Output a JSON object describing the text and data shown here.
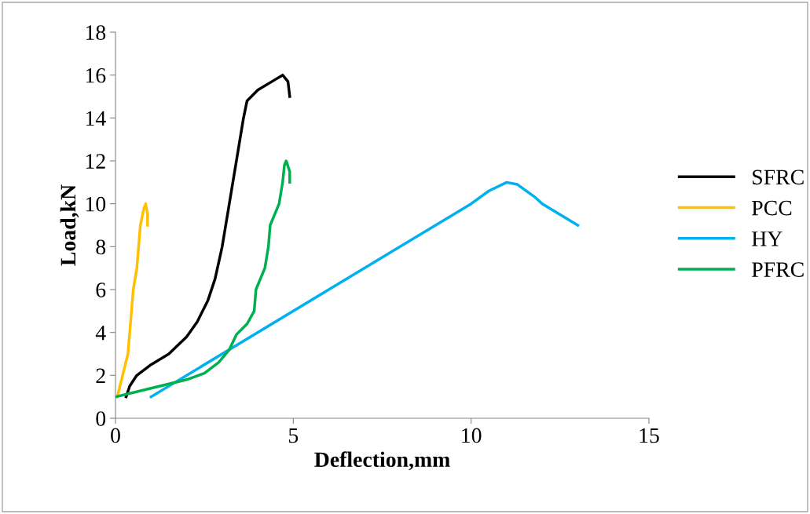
{
  "chart_data": {
    "type": "line",
    "xlabel": "Deflection,mm",
    "ylabel": "Load,kN",
    "xlim": [
      0,
      15
    ],
    "xticks": [
      0,
      5,
      10,
      15
    ],
    "ylim": [
      0,
      18
    ],
    "yticks": [
      0,
      2,
      4,
      6,
      8,
      10,
      12,
      14,
      16,
      18
    ],
    "grid": false,
    "legend": "right",
    "marker": "none",
    "line_style": "solid",
    "series": [
      {
        "name": "SFRC",
        "color": "#000000",
        "x": [
          0.3,
          0.4,
          0.6,
          1,
          1.5,
          2,
          2.3,
          2.6,
          2.8,
          3,
          3.2,
          3.4,
          3.6,
          3.7,
          4,
          4.5,
          4.7,
          4.85,
          4.9
        ],
        "values": [
          1,
          1.5,
          2,
          2.5,
          3,
          3.8,
          4.5,
          5.5,
          6.5,
          8,
          10,
          12,
          14,
          14.8,
          15.3,
          15.8,
          16,
          15.7,
          15
        ]
      },
      {
        "name": "PCC",
        "color": "#ffc000",
        "x": [
          0.05,
          0.2,
          0.35,
          0.4,
          0.45,
          0.5,
          0.6,
          0.65,
          0.7,
          0.8,
          0.85,
          0.9,
          0.9
        ],
        "values": [
          1,
          2,
          3,
          4,
          5,
          6,
          7,
          8,
          9,
          9.8,
          10,
          9.5,
          9
        ]
      },
      {
        "name": "HY",
        "color": "#00b0f0",
        "x": [
          1,
          10,
          10.5,
          11,
          11.3,
          11.8,
          12,
          13
        ],
        "values": [
          1,
          10,
          10.6,
          11,
          10.9,
          10.3,
          10,
          9
        ]
      },
      {
        "name": "PFRC",
        "color": "#00b050",
        "x": [
          0,
          1,
          2,
          2.5,
          2.9,
          3.2,
          3.4,
          3.7,
          3.9,
          3.95,
          4.2,
          4.3,
          4.35,
          4.5,
          4.6,
          4.7,
          4.75,
          4.8,
          4.9,
          4.9
        ],
        "values": [
          1,
          1.4,
          1.8,
          2.1,
          2.6,
          3.2,
          3.9,
          4.4,
          5,
          6,
          7,
          8,
          9,
          9.6,
          10,
          11,
          11.8,
          12,
          11.5,
          11
        ]
      }
    ]
  }
}
